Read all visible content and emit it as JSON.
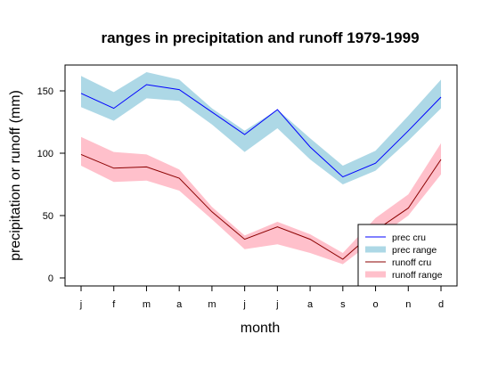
{
  "chart_data": {
    "type": "line",
    "title": "ranges in precipitation and runoff 1979-1999",
    "xlabel": "month",
    "ylabel": "precipitation or runoff (mm)",
    "categories": [
      "j",
      "f",
      "m",
      "a",
      "m",
      "j",
      "j",
      "a",
      "s",
      "o",
      "n",
      "d"
    ],
    "ylim": [
      -5,
      172
    ],
    "yticks": [
      0,
      50,
      100,
      150
    ],
    "grid": false,
    "legend_position": "bottom-right",
    "series": [
      {
        "name": "prec range",
        "kind": "band",
        "color": "#add8e6",
        "lower": [
          137,
          126,
          144,
          142,
          123,
          101,
          120,
          95,
          75,
          86,
          110,
          136
        ],
        "upper": [
          162,
          149,
          165,
          159,
          136,
          118,
          135,
          112,
          90,
          102,
          130,
          159
        ]
      },
      {
        "name": "runoff range",
        "kind": "band",
        "color": "#ffc0cb",
        "lower": [
          90,
          77,
          78,
          70,
          47,
          23,
          27,
          20,
          11,
          31,
          50,
          83
        ],
        "upper": [
          113,
          101,
          99,
          87,
          57,
          34,
          45,
          35,
          20,
          48,
          67,
          108
        ]
      },
      {
        "name": "prec cru",
        "kind": "line",
        "color": "#0000ff",
        "values": [
          148,
          136,
          155,
          151,
          133,
          115,
          135,
          105,
          81,
          92,
          118,
          145
        ]
      },
      {
        "name": "runoff cru",
        "kind": "line",
        "color": "#8b0000",
        "values": [
          99,
          88,
          89,
          80,
          53,
          31,
          41,
          31,
          15,
          38,
          56,
          95
        ]
      }
    ],
    "legend": [
      {
        "label": "prec cru",
        "style": "line",
        "color": "#0000ff"
      },
      {
        "label": "prec range",
        "style": "thick",
        "color": "#add8e6"
      },
      {
        "label": "runoff cru",
        "style": "line",
        "color": "#8b0000"
      },
      {
        "label": "runoff range",
        "style": "thick",
        "color": "#ffc0cb"
      }
    ]
  }
}
